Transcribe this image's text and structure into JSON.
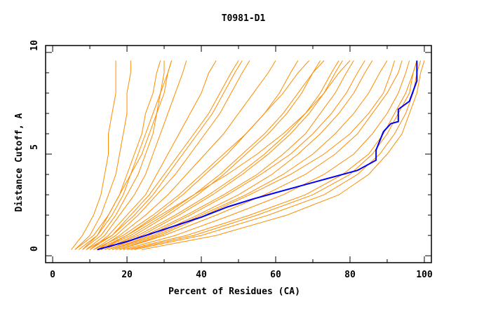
{
  "chart_data": {
    "type": "line",
    "title": "T0981-D1",
    "xlabel": "Percent of Residues (CA)",
    "ylabel": "Distance Cutoff, A",
    "xlim": [
      -1.9,
      101.9
    ],
    "ylim": [
      -0.34,
      10.34
    ],
    "x_ticks": [
      0,
      20,
      40,
      60,
      80,
      100
    ],
    "x_tick_labels": [
      "0",
      "20",
      "40",
      "60",
      "80",
      "100"
    ],
    "y_ticks": [
      0,
      5,
      10
    ],
    "y_tick_labels": [
      "0",
      "5",
      "10"
    ],
    "grid": false,
    "legend": "none",
    "colors": {
      "others": "#ff8c00",
      "highlight": "#0000ff",
      "axis": "#000000"
    },
    "background_y_levels": [
      0.3,
      1,
      2,
      3,
      4,
      5,
      6,
      7,
      8,
      9,
      9.6
    ],
    "background_series_x": [
      [
        5,
        8,
        11,
        13,
        14,
        15,
        15,
        16,
        17,
        17,
        17
      ],
      [
        6,
        10,
        13,
        15,
        17,
        18,
        19,
        20,
        20,
        21,
        21
      ],
      [
        8,
        12,
        15,
        18,
        20,
        22,
        24,
        25,
        27,
        28,
        29
      ],
      [
        9,
        14,
        18,
        22,
        25,
        27,
        29,
        31,
        33,
        35,
        36
      ],
      [
        10,
        15,
        20,
        25,
        28,
        31,
        34,
        37,
        40,
        42,
        44
      ],
      [
        11,
        17,
        23,
        28,
        33,
        37,
        41,
        45,
        48,
        51,
        53
      ],
      [
        12,
        18,
        25,
        31,
        36,
        41,
        46,
        50,
        54,
        58,
        60
      ],
      [
        13,
        20,
        28,
        35,
        41,
        47,
        52,
        57,
        61,
        64,
        66
      ],
      [
        14,
        22,
        31,
        39,
        46,
        52,
        58,
        63,
        67,
        70,
        72
      ],
      [
        15,
        24,
        34,
        43,
        51,
        58,
        64,
        69,
        73,
        76,
        78
      ],
      [
        16,
        26,
        37,
        47,
        56,
        64,
        70,
        75,
        79,
        82,
        84
      ],
      [
        17,
        28,
        40,
        52,
        62,
        70,
        76,
        81,
        85,
        88,
        90
      ],
      [
        18,
        30,
        44,
        57,
        68,
        76,
        82,
        86,
        90,
        93,
        94
      ],
      [
        19,
        33,
        48,
        62,
        73,
        81,
        86,
        90,
        93,
        95,
        96
      ],
      [
        20,
        36,
        53,
        68,
        78,
        85,
        89,
        92,
        95,
        97,
        98
      ],
      [
        22,
        40,
        58,
        73,
        82,
        88,
        92,
        95,
        97,
        98,
        99
      ],
      [
        24,
        44,
        63,
        77,
        85,
        90,
        94,
        96,
        98,
        99,
        100
      ],
      [
        7,
        12,
        16,
        19,
        21,
        23,
        25,
        27,
        29,
        31,
        32
      ],
      [
        9,
        16,
        22,
        27,
        31,
        35,
        39,
        43,
        46,
        49,
        51
      ],
      [
        11,
        19,
        27,
        34,
        40,
        46,
        52,
        57,
        62,
        66,
        69
      ],
      [
        13,
        21,
        30,
        38,
        45,
        51,
        57,
        62,
        66,
        70,
        73
      ],
      [
        15,
        25,
        36,
        46,
        55,
        62,
        68,
        72,
        76,
        79,
        81
      ],
      [
        10,
        16,
        21,
        26,
        30,
        34,
        38,
        42,
        45,
        48,
        50
      ],
      [
        12,
        20,
        29,
        38,
        47,
        55,
        62,
        68,
        73,
        77,
        80
      ],
      [
        14,
        23,
        33,
        42,
        50,
        57,
        63,
        68,
        72,
        75,
        77
      ],
      [
        6,
        11,
        15,
        18,
        21,
        24,
        26,
        28,
        30,
        31,
        32
      ],
      [
        8,
        13,
        17,
        20,
        23,
        25,
        27,
        28,
        29,
        30,
        30
      ],
      [
        16,
        27,
        39,
        50,
        59,
        66,
        72,
        77,
        81,
        84,
        86
      ],
      [
        18,
        29,
        41,
        53,
        64,
        73,
        80,
        85,
        89,
        91,
        92
      ],
      [
        21,
        38,
        55,
        70,
        80,
        86,
        90,
        93,
        96,
        97,
        98
      ]
    ],
    "highlight_series": [
      [
        12,
        0.3
      ],
      [
        20,
        0.7
      ],
      [
        30,
        1.3
      ],
      [
        40,
        1.9
      ],
      [
        47,
        2.4
      ],
      [
        54,
        2.8
      ],
      [
        62,
        3.2
      ],
      [
        72,
        3.7
      ],
      [
        82,
        4.2
      ],
      [
        87,
        4.7
      ],
      [
        87,
        5.2
      ],
      [
        89,
        6.1
      ],
      [
        91,
        6.5
      ],
      [
        93,
        6.6
      ],
      [
        93,
        7.2
      ],
      [
        96,
        7.6
      ],
      [
        98,
        8.6
      ],
      [
        98,
        9.6
      ]
    ]
  }
}
